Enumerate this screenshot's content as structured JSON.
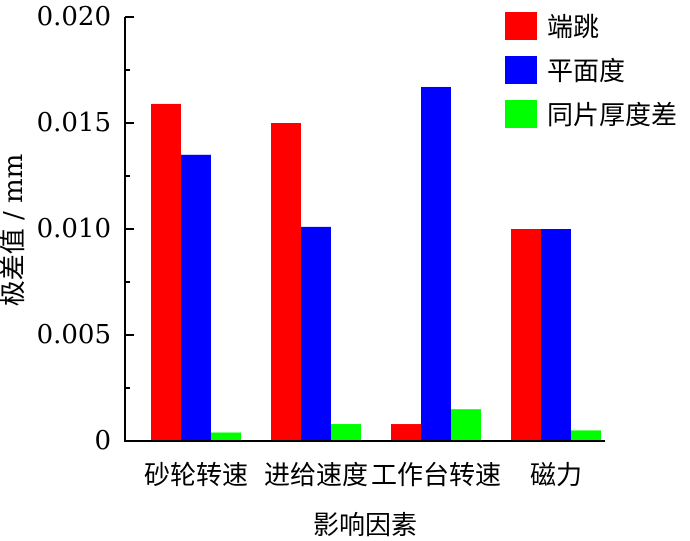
{
  "chart_data": {
    "type": "bar",
    "title": "",
    "xlabel": "影响因素",
    "ylabel": "极差值 / mm",
    "ylim": [
      0,
      0.02
    ],
    "yticks": [
      "0",
      "0.005",
      "0.010",
      "0.015",
      "0.020"
    ],
    "ytick_values": [
      0,
      0.005,
      0.01,
      0.015,
      0.02
    ],
    "categories": [
      "砂轮转速",
      "进给速度",
      "工作台转速",
      "磁力"
    ],
    "series": [
      {
        "name": "端跳",
        "color": "#ff0000",
        "values": [
          0.0159,
          0.015,
          0.0008,
          0.01
        ]
      },
      {
        "name": "平面度",
        "color": "#0000ff",
        "values": [
          0.0135,
          0.0101,
          0.0167,
          0.01
        ]
      },
      {
        "name": "同片厚度差",
        "color": "#00ff00",
        "values": [
          0.0004,
          0.0008,
          0.0015,
          0.0005
        ]
      }
    ],
    "legend_position": "top-right",
    "grid": false
  }
}
